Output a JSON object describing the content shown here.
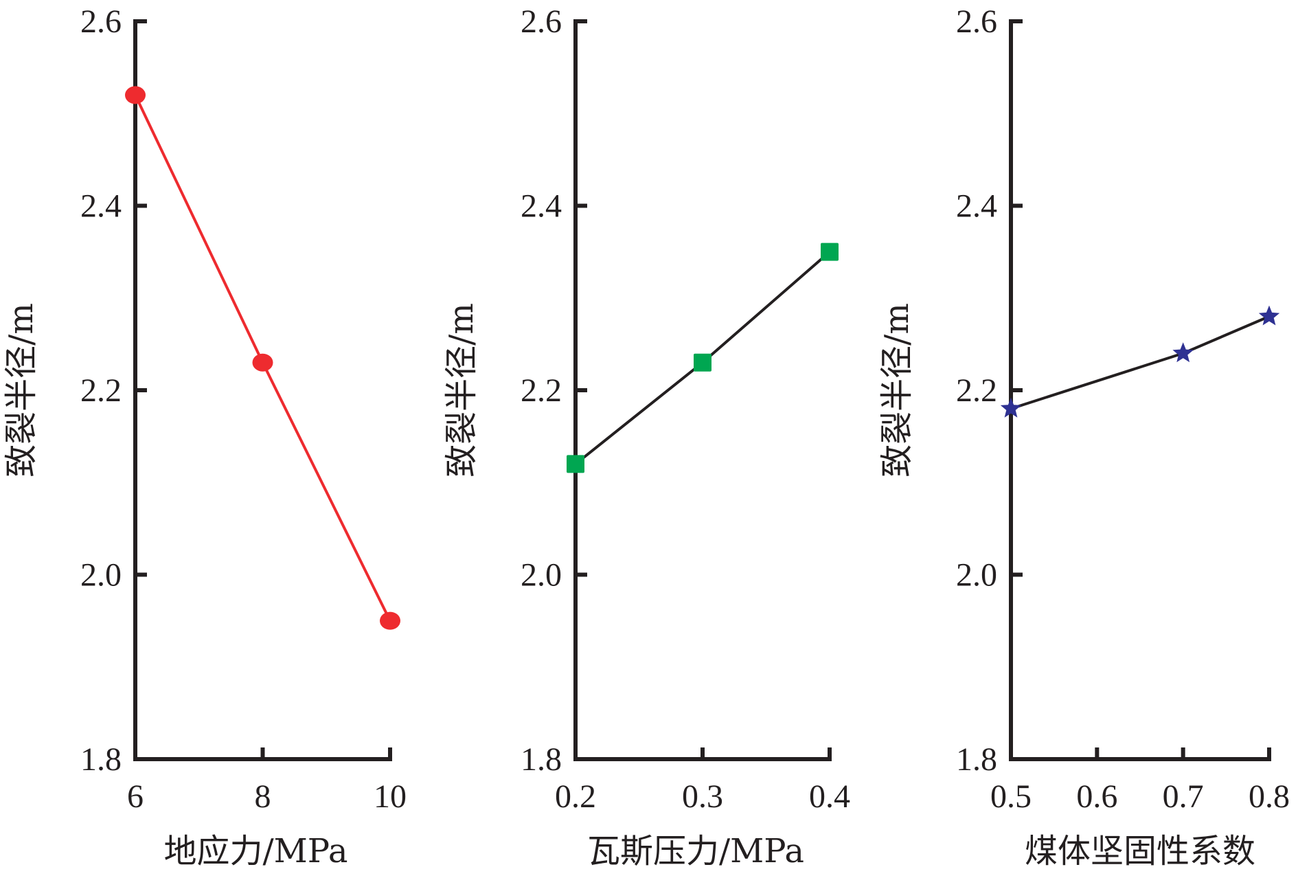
{
  "chart_data": [
    {
      "type": "line",
      "xlabel": "地应力/MPa",
      "ylabel": "致裂半径/m",
      "x": [
        6,
        8,
        10
      ],
      "xticks": [
        "6",
        "8",
        "10"
      ],
      "xlim": [
        6,
        10
      ],
      "ylim": [
        1.8,
        2.6
      ],
      "yticks": [
        "1.8",
        "2.0",
        "2.2",
        "2.4",
        "2.6"
      ],
      "series": [
        {
          "name": "地应力",
          "values": [
            2.52,
            2.23,
            1.95
          ],
          "color": "#ee2b2f",
          "line_color": "#ee2b2f",
          "marker": "circle"
        }
      ],
      "grid": false
    },
    {
      "type": "line",
      "xlabel": "瓦斯压力/MPa",
      "ylabel": "致裂半径/m",
      "x": [
        0.2,
        0.3,
        0.4
      ],
      "xticks": [
        "0.2",
        "0.3",
        "0.4"
      ],
      "xlim": [
        0.2,
        0.4
      ],
      "ylim": [
        1.8,
        2.6
      ],
      "yticks": [
        "1.8",
        "2.0",
        "2.2",
        "2.4",
        "2.6"
      ],
      "series": [
        {
          "name": "瓦斯压力",
          "values": [
            2.12,
            2.23,
            2.35
          ],
          "color": "#00a651",
          "line_color": "#231f20",
          "marker": "square"
        }
      ],
      "grid": false
    },
    {
      "type": "line",
      "xlabel": "煤体坚固性系数",
      "ylabel": "致裂半径/m",
      "x": [
        0.5,
        0.7,
        0.8
      ],
      "xticks": [
        "0.5",
        "0.6",
        "0.7",
        "0.8"
      ],
      "xtick_values": [
        0.5,
        0.6,
        0.7,
        0.8
      ],
      "xlim": [
        0.5,
        0.8
      ],
      "ylim": [
        1.8,
        2.6
      ],
      "yticks": [
        "1.8",
        "2.0",
        "2.2",
        "2.4",
        "2.6"
      ],
      "series": [
        {
          "name": "煤体坚固性系数",
          "values": [
            2.18,
            2.24,
            2.28
          ],
          "color": "#2e3192",
          "line_color": "#231f20",
          "marker": "star"
        }
      ],
      "grid": false
    }
  ]
}
